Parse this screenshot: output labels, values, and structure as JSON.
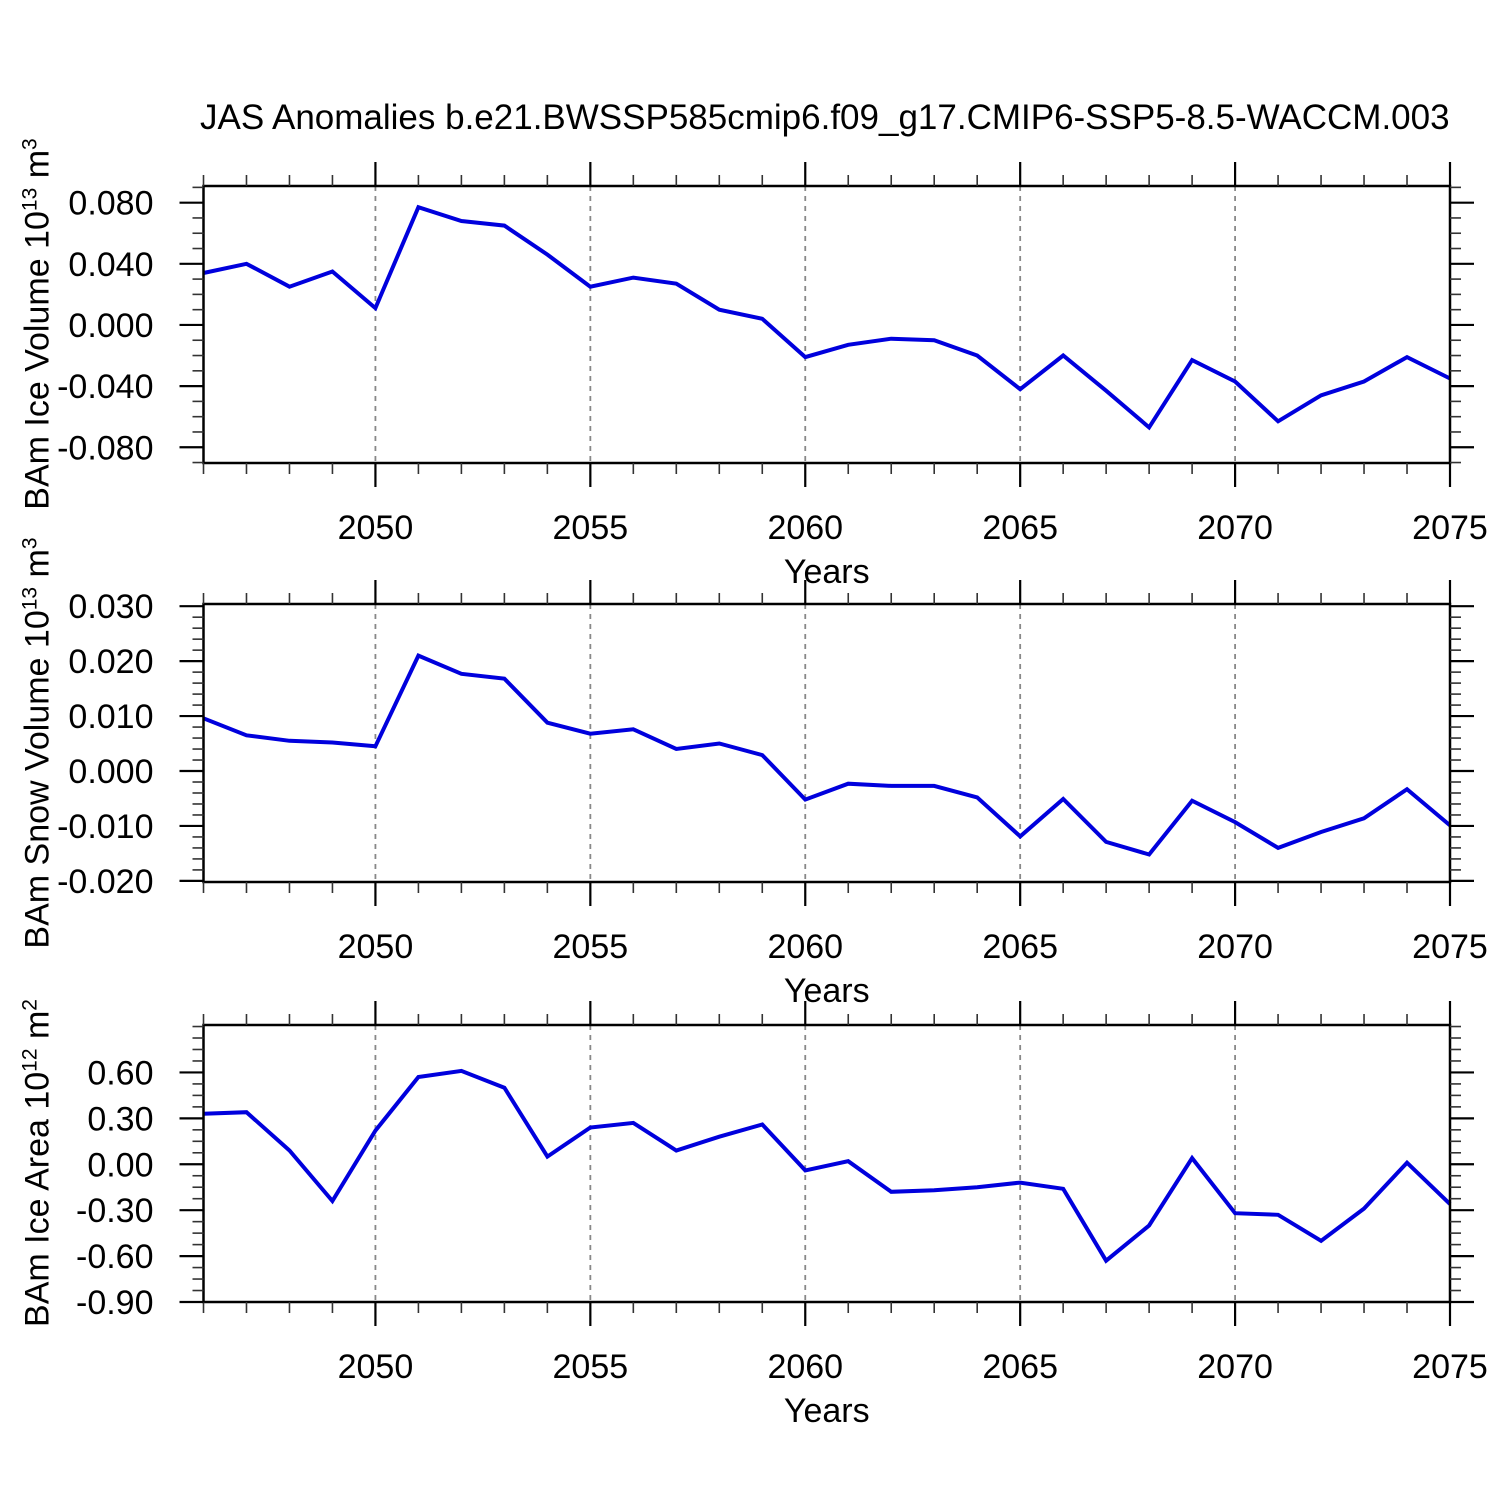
{
  "title": "JAS Anomalies b.e21.BWSSP585cmip6.f09_g17.CMIP6-SSP5-8.5-WACCM.003",
  "style": {
    "line_color": "#0000dd",
    "grid_color": "#888888",
    "axis_color": "#000000",
    "minor_tick_color": "#333333",
    "background": "#ffffff"
  },
  "chart_data": {
    "type": "line",
    "xlabel": "Years",
    "x_min": 2046,
    "x_max": 2075,
    "x_major_ticks": [
      2050,
      2055,
      2060,
      2065,
      2070,
      2075
    ],
    "x_minor_step": 1,
    "grid": "vertical dashed gridlines at labeled years",
    "legend": "none",
    "x": [
      2046,
      2047,
      2048,
      2049,
      2050,
      2051,
      2052,
      2053,
      2054,
      2055,
      2056,
      2057,
      2058,
      2059,
      2060,
      2061,
      2062,
      2063,
      2064,
      2065,
      2066,
      2067,
      2068,
      2069,
      2070,
      2071,
      2072,
      2073,
      2074,
      2075
    ],
    "panels": [
      {
        "name": "BAm Ice Volume",
        "ylabel": {
          "main": "BAm Ice Volume 10",
          "exp": "13",
          "unit": " m",
          "unit_exp": "3"
        },
        "ylim": [
          -0.0903,
          0.0909
        ],
        "yticks": [
          0.08,
          0.04,
          0.0,
          -0.04,
          -0.08
        ],
        "ytick_labels": [
          "0.080",
          "0.040",
          "0.000",
          "-0.040",
          "-0.080"
        ],
        "yminor_step": 0.01,
        "values": [
          0.034,
          0.04,
          0.025,
          0.035,
          0.011,
          0.077,
          0.068,
          0.065,
          0.046,
          0.025,
          0.031,
          0.027,
          0.01,
          0.004,
          -0.021,
          -0.013,
          -0.009,
          -0.01,
          -0.02,
          -0.042,
          -0.02,
          -0.043,
          -0.067,
          -0.023,
          -0.037,
          -0.063,
          -0.046,
          -0.037,
          -0.021,
          -0.035
        ]
      },
      {
        "name": "BAm Snow Volume",
        "ylabel": {
          "main": "BAm Snow Volume 10",
          "exp": "13",
          "unit": " m",
          "unit_exp": "3"
        },
        "ylim": [
          -0.0202,
          0.0304
        ],
        "yticks": [
          0.03,
          0.02,
          0.01,
          0.0,
          -0.01,
          -0.02
        ],
        "ytick_labels": [
          "0.030",
          "0.020",
          "0.010",
          "0.000",
          "-0.010",
          "-0.020"
        ],
        "yminor_step": 0.002,
        "values": [
          0.0096,
          0.0065,
          0.0055,
          0.0052,
          0.0045,
          0.021,
          0.0177,
          0.0168,
          0.0088,
          0.0068,
          0.0076,
          0.004,
          0.005,
          0.0029,
          -0.0052,
          -0.0023,
          -0.0027,
          -0.0027,
          -0.0048,
          -0.0119,
          -0.0051,
          -0.0129,
          -0.0152,
          -0.0054,
          -0.0093,
          -0.014,
          -0.0111,
          -0.0086,
          -0.0033,
          -0.0099
        ]
      },
      {
        "name": "BAm Ice Area",
        "ylabel": {
          "main": "BAm Ice Area 10",
          "exp": "12",
          "unit": " m",
          "unit_exp": "2"
        },
        "ylim": [
          -0.9,
          0.91
        ],
        "yticks": [
          0.6,
          0.3,
          0.0,
          -0.3,
          -0.6,
          -0.9
        ],
        "ytick_labels": [
          "0.60",
          "0.30",
          "0.00",
          "-0.30",
          "-0.60",
          "-0.90"
        ],
        "yminor_step": 0.075,
        "values": [
          0.33,
          0.34,
          0.09,
          -0.24,
          0.22,
          0.57,
          0.61,
          0.5,
          0.05,
          0.24,
          0.27,
          0.09,
          0.18,
          0.26,
          -0.04,
          0.02,
          -0.18,
          -0.17,
          -0.15,
          -0.12,
          -0.16,
          -0.63,
          -0.4,
          0.04,
          -0.32,
          -0.33,
          -0.5,
          -0.29,
          0.01,
          -0.26
        ]
      }
    ]
  }
}
